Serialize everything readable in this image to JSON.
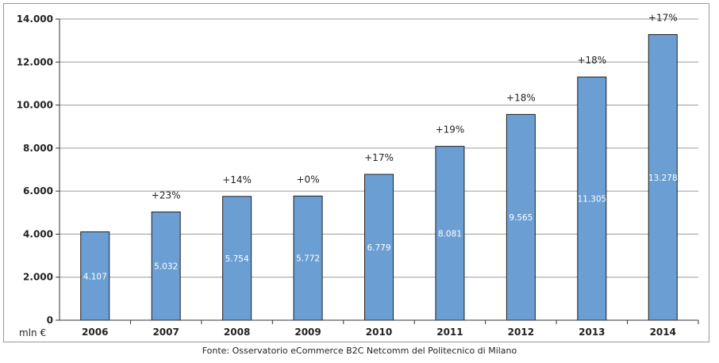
{
  "chart_data": {
    "type": "bar",
    "categories": [
      "2006",
      "2007",
      "2008",
      "2009",
      "2010",
      "2011",
      "2012",
      "2013",
      "2014"
    ],
    "values": [
      4107,
      5032,
      5754,
      5772,
      6779,
      8081,
      9565,
      11305,
      13278
    ],
    "value_labels": [
      "4.107",
      "5.032",
      "5.754",
      "5.772",
      "6.779",
      "8.081",
      "9.565",
      "11.305",
      "13.278"
    ],
    "growth_labels": [
      "",
      "+23%",
      "+14%",
      "+0%",
      "+17%",
      "+19%",
      "+18%",
      "+18%",
      "+17%"
    ],
    "ylim": [
      0,
      14000
    ],
    "yticks": [
      0,
      2000,
      4000,
      6000,
      8000,
      10000,
      12000,
      14000
    ],
    "ytick_labels": [
      "0",
      "2.000",
      "4.000",
      "6.000",
      "8.000",
      "10.000",
      "12.000",
      "14.000"
    ],
    "unit_label": "mln €",
    "grid": true,
    "bar_color": "#6b9fd4"
  },
  "source": "Fonte: Osservatorio eCommerce B2C Netcomm del Politecnico di Milano"
}
